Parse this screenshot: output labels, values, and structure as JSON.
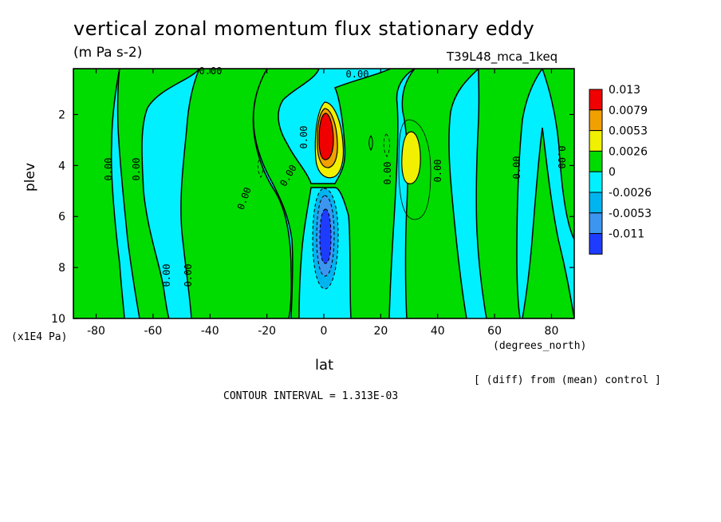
{
  "header": {
    "title": "vertical zonal momentum flux stationary eddy",
    "units": "(m Pa s-2)",
    "run": "T39L48_mca_1keq"
  },
  "footer": {
    "diff_note": "[ (diff) from (mean) control ]",
    "contour_interval": "CONTOUR INTERVAL = 1.313E-03"
  },
  "chart_data": {
    "type": "heatmap",
    "title": "vertical zonal momentum flux stationary eddy",
    "subtitle": "(m Pa s-2)",
    "xlabel": "lat",
    "xunits": "(degrees_north)",
    "ylabel": "plev",
    "yunits": "(x1E4 Pa)",
    "xlim": [
      -88,
      88
    ],
    "ylim": [
      10,
      0.2
    ],
    "xticks": [
      -80,
      -60,
      -40,
      -20,
      0,
      20,
      40,
      60,
      80
    ],
    "xtick_labels": [
      "-80",
      "-60",
      "-40",
      "-20",
      "0",
      "20",
      "40",
      "60",
      "80"
    ],
    "yticks": [
      2,
      4,
      6,
      8,
      10
    ],
    "ytick_labels": [
      "2",
      "4",
      "6",
      "8",
      "10"
    ],
    "legend": {
      "placement": "right",
      "levels": [
        "0.013",
        "0.0079",
        "0.0053",
        "0.0026",
        "0",
        "-0.0026",
        "-0.0053",
        "-0.011"
      ],
      "colors": [
        "#f00000",
        "#f0a000",
        "#f0f000",
        "#00dc00",
        "#00f0ff",
        "#00b4f0",
        "#3c96f0",
        "#1e3cff"
      ]
    },
    "contour_labels": [
      "0.00",
      "0.00",
      "0.00",
      "0.00",
      "0.00",
      "0.00",
      "0.00",
      "0.00",
      "0.00",
      "0.00",
      "0.00",
      "0.00",
      "0.00",
      "0.00",
      "0.00"
    ],
    "features": [
      {
        "name": "positive maximum",
        "lat": 1,
        "plev": 2.6,
        "value": 0.013
      },
      {
        "name": "negative minimum",
        "lat": 1,
        "plev": 6.8,
        "value": -0.011
      },
      {
        "name": "secondary positive",
        "lat": 31,
        "plev": 3.6,
        "value": 0.0053
      }
    ],
    "grid": false
  }
}
